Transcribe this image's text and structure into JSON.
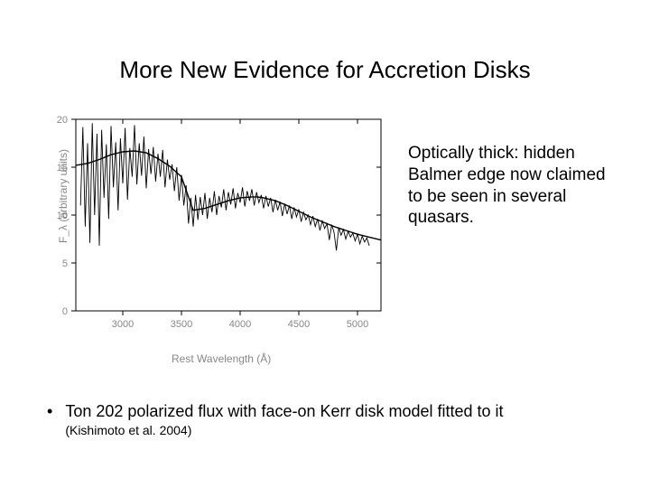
{
  "title": "More New Evidence for Accretion Disks",
  "annotation": "Optically thick: hidden Balmer edge now claimed to be seen in several quasars.",
  "bullet": {
    "text": "Ton 202 polarized flux with face-on Kerr disk model fitted to it",
    "ref": "(Kishimoto et al. 2004)"
  },
  "chart": {
    "type": "line",
    "xlabel": "Rest Wavelength (Å)",
    "ylabel": "F_λ (arbitrary units)",
    "xlim": [
      2600,
      5200
    ],
    "ylim": [
      0,
      20
    ],
    "xticks": [
      3000,
      3500,
      4000,
      4500,
      5000
    ],
    "yticks": [
      0,
      5,
      10,
      15,
      20
    ],
    "background_color": "#ffffff",
    "axis_color": "#000000",
    "tick_color": "#888888",
    "model_curve": {
      "color": "#000000",
      "width": 1.4,
      "points": [
        [
          2600,
          15.2
        ],
        [
          2700,
          15.4
        ],
        [
          2800,
          15.8
        ],
        [
          2900,
          16.3
        ],
        [
          3000,
          16.6
        ],
        [
          3100,
          16.7
        ],
        [
          3200,
          16.5
        ],
        [
          3300,
          15.9
        ],
        [
          3400,
          15.1
        ],
        [
          3500,
          14.0
        ],
        [
          3600,
          10.5
        ],
        [
          3700,
          10.7
        ],
        [
          3800,
          11.1
        ],
        [
          3900,
          11.5
        ],
        [
          4000,
          11.8
        ],
        [
          4100,
          11.9
        ],
        [
          4150,
          11.9
        ],
        [
          4200,
          11.8
        ],
        [
          4300,
          11.5
        ],
        [
          4400,
          11.0
        ],
        [
          4500,
          10.4
        ],
        [
          4600,
          9.8
        ],
        [
          4700,
          9.3
        ],
        [
          4800,
          8.8
        ],
        [
          4900,
          8.4
        ],
        [
          5000,
          8.0
        ],
        [
          5100,
          7.7
        ],
        [
          5200,
          7.4
        ]
      ]
    },
    "data_curve": {
      "color": "#000000",
      "width": 0.9,
      "points": [
        [
          2640,
          11.0
        ],
        [
          2660,
          19.2
        ],
        [
          2680,
          8.8
        ],
        [
          2700,
          17.5
        ],
        [
          2720,
          7.1
        ],
        [
          2740,
          19.6
        ],
        [
          2760,
          10.0
        ],
        [
          2780,
          18.5
        ],
        [
          2800,
          6.8
        ],
        [
          2820,
          18.9
        ],
        [
          2840,
          11.8
        ],
        [
          2860,
          17.4
        ],
        [
          2880,
          9.6
        ],
        [
          2900,
          19.3
        ],
        [
          2920,
          12.9
        ],
        [
          2940,
          17.6
        ],
        [
          2960,
          10.5
        ],
        [
          2980,
          18.0
        ],
        [
          3000,
          13.3
        ],
        [
          3020,
          19.1
        ],
        [
          3040,
          11.6
        ],
        [
          3060,
          17.0
        ],
        [
          3080,
          14.0
        ],
        [
          3100,
          19.4
        ],
        [
          3120,
          13.2
        ],
        [
          3140,
          17.5
        ],
        [
          3160,
          14.1
        ],
        [
          3180,
          18.2
        ],
        [
          3200,
          12.8
        ],
        [
          3220,
          16.9
        ],
        [
          3240,
          14.3
        ],
        [
          3260,
          17.1
        ],
        [
          3280,
          13.5
        ],
        [
          3300,
          16.4
        ],
        [
          3320,
          14.0
        ],
        [
          3340,
          16.8
        ],
        [
          3360,
          12.9
        ],
        [
          3380,
          15.8
        ],
        [
          3400,
          13.7
        ],
        [
          3420,
          15.3
        ],
        [
          3440,
          12.5
        ],
        [
          3460,
          15.0
        ],
        [
          3480,
          11.5
        ],
        [
          3500,
          14.2
        ],
        [
          3520,
          11.0
        ],
        [
          3540,
          13.1
        ],
        [
          3560,
          9.1
        ],
        [
          3580,
          11.8
        ],
        [
          3600,
          8.8
        ],
        [
          3620,
          12.1
        ],
        [
          3640,
          9.5
        ],
        [
          3660,
          11.9
        ],
        [
          3680,
          10.0
        ],
        [
          3700,
          12.3
        ],
        [
          3720,
          9.6
        ],
        [
          3740,
          11.8
        ],
        [
          3760,
          10.3
        ],
        [
          3780,
          12.5
        ],
        [
          3800,
          10.0
        ],
        [
          3820,
          12.0
        ],
        [
          3840,
          10.8
        ],
        [
          3860,
          12.7
        ],
        [
          3880,
          10.5
        ],
        [
          3900,
          12.4
        ],
        [
          3920,
          11.1
        ],
        [
          3940,
          12.8
        ],
        [
          3960,
          10.7
        ],
        [
          3980,
          12.3
        ],
        [
          4000,
          11.3
        ],
        [
          4020,
          12.9
        ],
        [
          4040,
          10.9
        ],
        [
          4060,
          12.5
        ],
        [
          4080,
          11.5
        ],
        [
          4100,
          12.7
        ],
        [
          4120,
          11.0
        ],
        [
          4140,
          12.4
        ],
        [
          4160,
          11.3
        ],
        [
          4180,
          12.1
        ],
        [
          4200,
          10.7
        ],
        [
          4220,
          12.0
        ],
        [
          4240,
          10.9
        ],
        [
          4260,
          11.8
        ],
        [
          4280,
          10.3
        ],
        [
          4300,
          11.6
        ],
        [
          4320,
          10.5
        ],
        [
          4340,
          11.4
        ],
        [
          4360,
          9.9
        ],
        [
          4380,
          11.2
        ],
        [
          4400,
          10.1
        ],
        [
          4420,
          11.0
        ],
        [
          4440,
          9.6
        ],
        [
          4460,
          10.8
        ],
        [
          4480,
          9.8
        ],
        [
          4500,
          10.6
        ],
        [
          4520,
          9.3
        ],
        [
          4540,
          10.3
        ],
        [
          4560,
          9.5
        ],
        [
          4580,
          10.0
        ],
        [
          4600,
          9.0
        ],
        [
          4620,
          9.9
        ],
        [
          4640,
          8.8
        ],
        [
          4660,
          9.6
        ],
        [
          4680,
          8.4
        ],
        [
          4700,
          9.4
        ],
        [
          4720,
          8.6
        ],
        [
          4740,
          9.1
        ],
        [
          4760,
          7.4
        ],
        [
          4780,
          9.0
        ],
        [
          4800,
          8.2
        ],
        [
          4820,
          6.3
        ],
        [
          4840,
          8.7
        ],
        [
          4860,
          7.9
        ],
        [
          4880,
          8.5
        ],
        [
          4900,
          7.5
        ],
        [
          4920,
          8.3
        ],
        [
          4940,
          7.7
        ],
        [
          4960,
          8.1
        ],
        [
          4980,
          7.3
        ],
        [
          5000,
          8.0
        ],
        [
          5020,
          7.0
        ],
        [
          5040,
          7.8
        ],
        [
          5060,
          7.2
        ],
        [
          5080,
          7.6
        ],
        [
          5100,
          6.8
        ]
      ]
    }
  }
}
